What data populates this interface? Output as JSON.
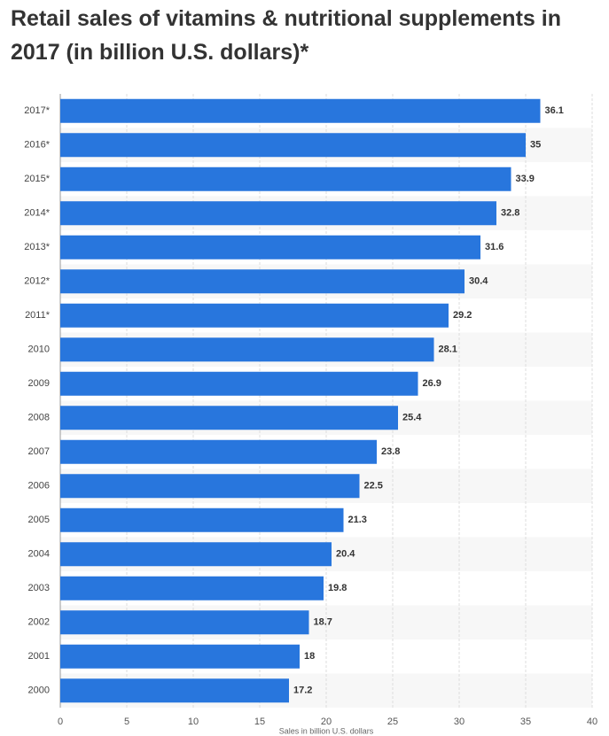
{
  "chart_data": {
    "type": "hbar",
    "title": "Retail sales of vitamins & nutritional supplements in 2017 (in billion U.S. dollars)*",
    "x_label": "Sales in billion U.S. dollars",
    "categories": [
      "2017*",
      "2016*",
      "2015*",
      "2014*",
      "2013*",
      "2012*",
      "2011*",
      "2010",
      "2009",
      "2008",
      "2007",
      "2006",
      "2005",
      "2004",
      "2003",
      "2002",
      "2001",
      "2000"
    ],
    "values": [
      36.1,
      35,
      33.9,
      32.8,
      31.6,
      30.4,
      29.2,
      28.1,
      26.9,
      25.4,
      23.8,
      22.5,
      21.3,
      20.4,
      19.8,
      18.7,
      18,
      17.2
    ],
    "color": "#2876dd",
    "xlim": [
      0,
      40
    ],
    "xticks": [
      0,
      5,
      10,
      15,
      20,
      25,
      30,
      35,
      40
    ],
    "grid": true
  }
}
